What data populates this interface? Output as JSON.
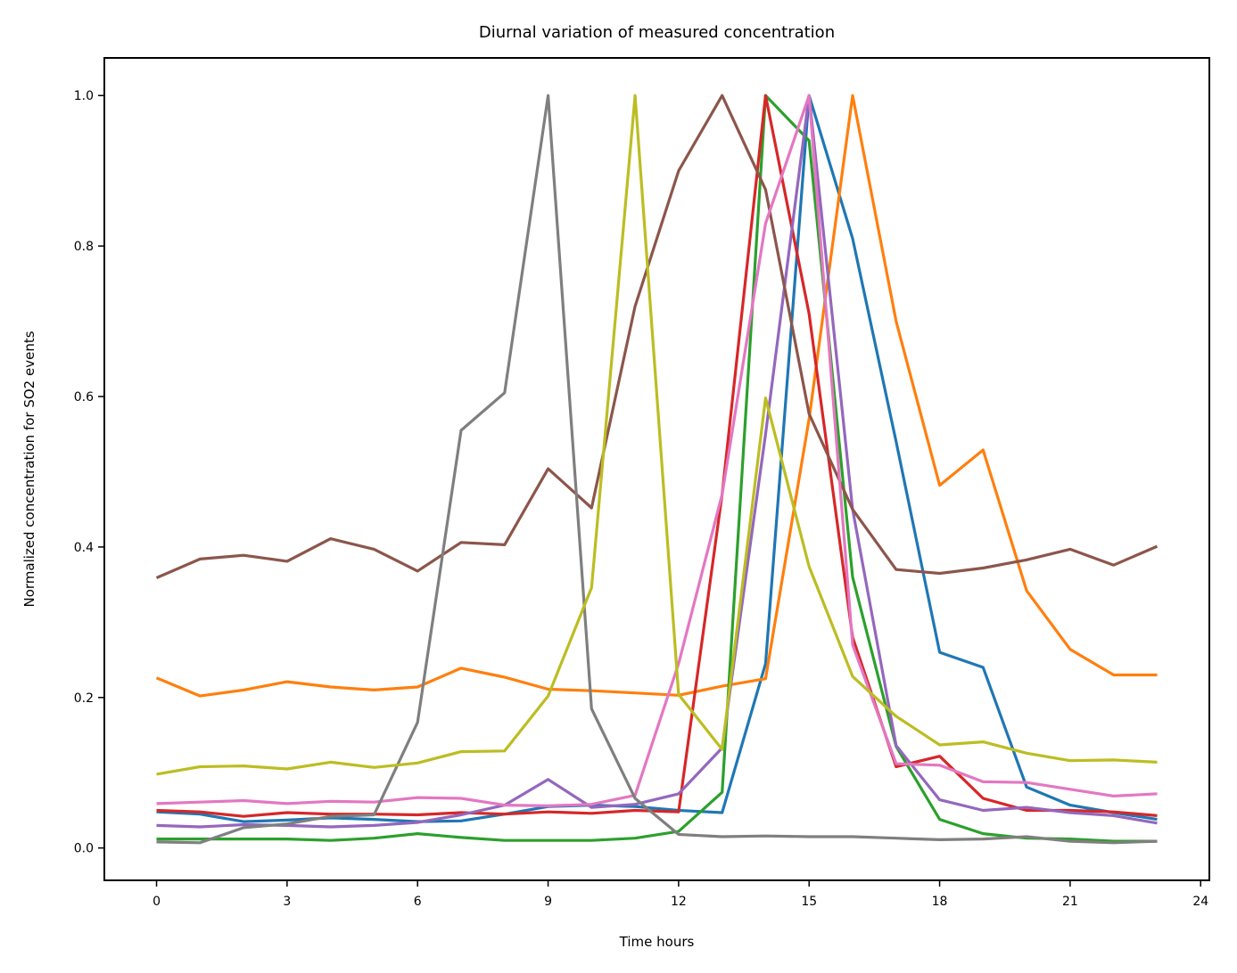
{
  "chart_data": {
    "type": "line",
    "title": "Diurnal variation of measured concentration",
    "xlabel": "Time hours",
    "ylabel": "Normalized concentration for SO2 events",
    "xlim": [
      -1.2,
      24.2
    ],
    "ylim": [
      -0.043,
      1.05
    ],
    "xticks": [
      0,
      3,
      6,
      9,
      12,
      15,
      18,
      21,
      24
    ],
    "yticks": [
      0.0,
      0.2,
      0.4,
      0.6,
      0.8,
      1.0
    ],
    "grid": false,
    "x": [
      0,
      1,
      2,
      3,
      4,
      5,
      6,
      7,
      8,
      9,
      10,
      11,
      12,
      13,
      14,
      15,
      16,
      17,
      18,
      19,
      20,
      21,
      22,
      23
    ],
    "series": [
      {
        "color": "#1f77b4",
        "values": [
          0.048,
          0.045,
          0.035,
          0.037,
          0.04,
          0.038,
          0.035,
          0.036,
          0.045,
          0.055,
          0.057,
          0.055,
          0.05,
          0.047,
          0.245,
          1.0,
          0.81,
          0.54,
          0.26,
          0.24,
          0.081,
          0.057,
          0.047,
          0.038
        ]
      },
      {
        "color": "#ff7f0e",
        "values": [
          0.226,
          0.202,
          0.21,
          0.221,
          0.214,
          0.21,
          0.214,
          0.239,
          0.227,
          0.211,
          0.209,
          0.206,
          0.203,
          0.215,
          0.225,
          0.57,
          1.0,
          0.7,
          0.482,
          0.529,
          0.342,
          0.264,
          0.23,
          0.23
        ]
      },
      {
        "color": "#2ca02c",
        "values": [
          0.012,
          0.012,
          0.012,
          0.012,
          0.01,
          0.013,
          0.019,
          0.014,
          0.01,
          0.01,
          0.01,
          0.013,
          0.022,
          0.074,
          1.0,
          0.94,
          0.36,
          0.135,
          0.038,
          0.019,
          0.013,
          0.012,
          0.009,
          0.009
        ]
      },
      {
        "color": "#d62728",
        "values": [
          0.05,
          0.048,
          0.042,
          0.047,
          0.045,
          0.045,
          0.044,
          0.047,
          0.045,
          0.048,
          0.046,
          0.05,
          0.048,
          0.47,
          1.0,
          0.71,
          0.28,
          0.108,
          0.122,
          0.066,
          0.05,
          0.05,
          0.048,
          0.043
        ]
      },
      {
        "color": "#9467bd",
        "values": [
          0.03,
          0.028,
          0.031,
          0.03,
          0.028,
          0.03,
          0.034,
          0.044,
          0.057,
          0.091,
          0.054,
          0.058,
          0.072,
          0.133,
          0.55,
          1.0,
          0.45,
          0.136,
          0.064,
          0.05,
          0.054,
          0.047,
          0.043,
          0.033
        ]
      },
      {
        "color": "#8c564b",
        "values": [
          0.359,
          0.384,
          0.389,
          0.381,
          0.411,
          0.397,
          0.368,
          0.406,
          0.403,
          0.504,
          0.452,
          0.72,
          0.9,
          1.0,
          0.875,
          0.577,
          0.45,
          0.37,
          0.365,
          0.372,
          0.383,
          0.397,
          0.376,
          0.401
        ]
      },
      {
        "color": "#e377c2",
        "values": [
          0.059,
          0.061,
          0.063,
          0.059,
          0.062,
          0.061,
          0.067,
          0.066,
          0.057,
          0.056,
          0.058,
          0.07,
          0.245,
          0.47,
          0.83,
          1.0,
          0.27,
          0.112,
          0.11,
          0.088,
          0.087,
          0.078,
          0.069,
          0.072
        ]
      },
      {
        "color": "#7f7f7f",
        "values": [
          0.008,
          0.007,
          0.027,
          0.032,
          0.042,
          0.044,
          0.167,
          0.555,
          0.605,
          1.0,
          0.185,
          0.066,
          0.018,
          0.015,
          0.016,
          0.015,
          0.015,
          0.013,
          0.011,
          0.012,
          0.015,
          0.009,
          0.007,
          0.009
        ]
      },
      {
        "color": "#bcbd22",
        "values": [
          0.098,
          0.108,
          0.109,
          0.105,
          0.114,
          0.107,
          0.113,
          0.128,
          0.129,
          0.202,
          0.346,
          1.0,
          0.204,
          0.131,
          0.598,
          0.374,
          0.228,
          0.175,
          0.137,
          0.141,
          0.126,
          0.116,
          0.117,
          0.114
        ]
      }
    ]
  }
}
